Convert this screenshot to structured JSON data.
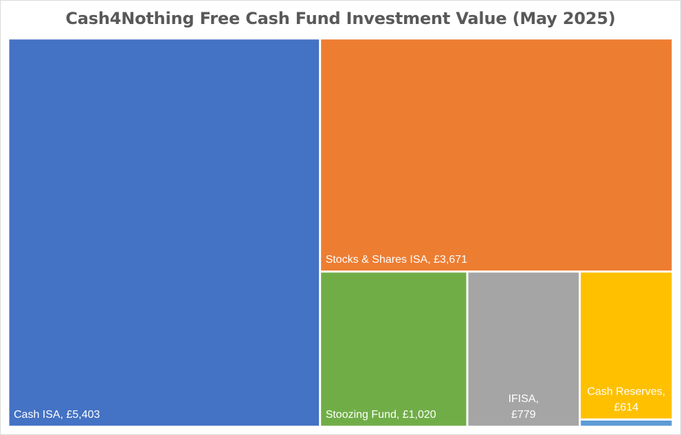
{
  "chart_data": {
    "type": "treemap",
    "title": "Cash4Nothing Free Cash Fund Investment Value (May 2025)",
    "items": [
      {
        "label": "Cash ISA",
        "value": 5403,
        "display": "£5,403",
        "color": "#4472C4"
      },
      {
        "label": "Stocks & Shares ISA",
        "value": 3671,
        "display": "£3,671",
        "color": "#ED7D31"
      },
      {
        "label": "Stoozing Fund",
        "value": 1020,
        "display": "£1,020",
        "color": "#70AD47"
      },
      {
        "label": "IFISA",
        "value": 779,
        "display": "£779",
        "color": "#A5A5A5"
      },
      {
        "label": "Cash Reserves",
        "value": 614,
        "display": "£614",
        "color": "#FFC000"
      },
      {
        "label": "",
        "value": 30,
        "display": "",
        "color": "#5B9BD5"
      }
    ]
  }
}
